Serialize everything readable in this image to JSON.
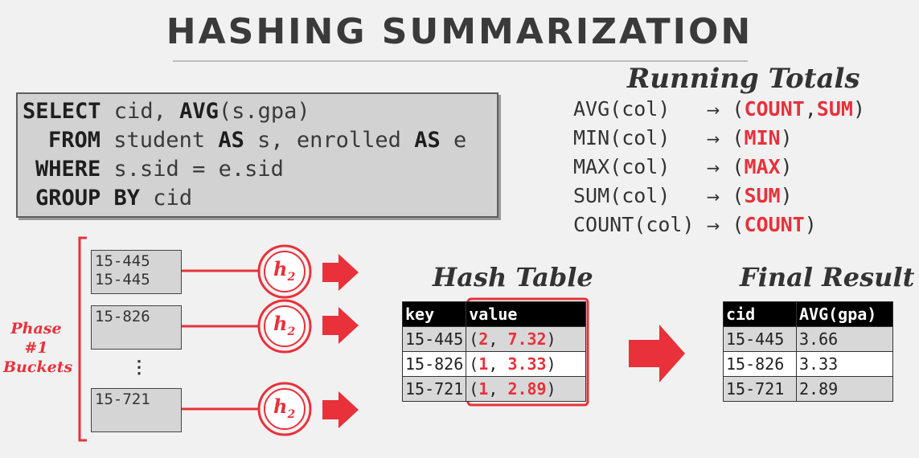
{
  "title": "HASHING SUMMARIZATION",
  "query": {
    "line1": {
      "kw1": "SELECT",
      "t1": " cid, ",
      "kw2": "AVG",
      "t2": "(s.gpa)"
    },
    "line2": {
      "kw1": "FROM",
      "t1": " student ",
      "kw2": "AS",
      "t2": " s, enrolled ",
      "kw3": "AS",
      "t3": " e"
    },
    "line3": {
      "kw1": "WHERE",
      "t1": " s.sid = e.sid"
    },
    "line4": {
      "kw1": "GROUP BY",
      "t1": " cid"
    }
  },
  "running_totals": {
    "title": "Running Totals",
    "rows": [
      {
        "fn": "AVG",
        "arg": "(col)",
        "pad": "   ",
        "arrow": "→",
        "open": " (",
        "vals": [
          "COUNT",
          "SUM"
        ],
        "close": ")"
      },
      {
        "fn": "MIN",
        "arg": "(col)",
        "pad": "   ",
        "arrow": "→",
        "open": " (",
        "vals": [
          "MIN"
        ],
        "close": ")"
      },
      {
        "fn": "MAX",
        "arg": "(col)",
        "pad": "   ",
        "arrow": "→",
        "open": " (",
        "vals": [
          "MAX"
        ],
        "close": ")"
      },
      {
        "fn": "SUM",
        "arg": "(col)",
        "pad": "   ",
        "arrow": "→",
        "open": " (",
        "vals": [
          "SUM"
        ],
        "close": ")"
      },
      {
        "fn": "COUNT",
        "arg": "(col)",
        "pad": " ",
        "arrow": "→",
        "open": " (",
        "vals": [
          "COUNT"
        ],
        "close": ")"
      }
    ]
  },
  "phase_label": {
    "line1": "Phase #1",
    "line2": "Buckets"
  },
  "buckets": [
    {
      "lines": [
        "15-445",
        "15-445"
      ]
    },
    {
      "lines": [
        "15-826"
      ]
    },
    {
      "lines": [
        "15-721"
      ]
    }
  ],
  "ellipsis": "⋮",
  "hash_fn": {
    "base": "h",
    "sub": "2"
  },
  "hash_table": {
    "title": "Hash Table",
    "headers": [
      "key",
      "value"
    ],
    "rows": [
      {
        "key": "15-445",
        "count": "2",
        "sum": "7.32"
      },
      {
        "key": "15-826",
        "count": "1",
        "sum": "3.33"
      },
      {
        "key": "15-721",
        "count": "1",
        "sum": "2.89"
      }
    ]
  },
  "final_result": {
    "title": "Final Result",
    "headers": [
      "cid",
      "AVG(gpa)"
    ],
    "rows": [
      {
        "cid": "15-445",
        "avg": "3.66"
      },
      {
        "cid": "15-826",
        "avg": "3.33"
      },
      {
        "cid": "15-721",
        "avg": "2.89"
      }
    ]
  },
  "colors": {
    "accent": "#e8313a",
    "header_bg": "#000000",
    "cell_bg": "#d8d8d8"
  }
}
